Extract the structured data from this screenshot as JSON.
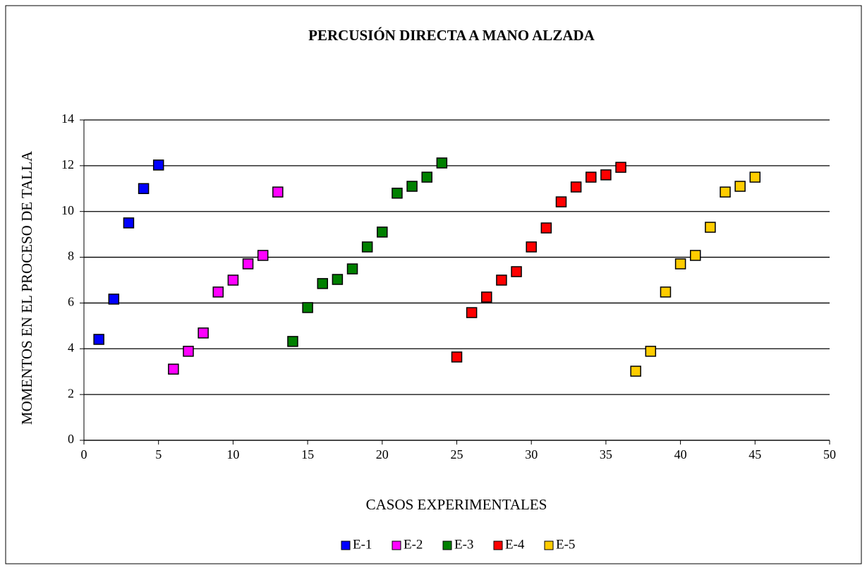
{
  "chart_data": {
    "type": "scatter",
    "title": "PERCUSIÓN DIRECTA A MANO ALZADA",
    "xlabel": "CASOS EXPERIMENTALES",
    "ylabel": "MOMENTOS EN EL PROCESO DE TALLA",
    "xlim": [
      0,
      50
    ],
    "xticks": [
      0,
      5,
      10,
      15,
      20,
      25,
      30,
      35,
      40,
      45,
      50
    ],
    "ylim": [
      0,
      14
    ],
    "yticks": [
      0,
      2,
      4,
      6,
      8,
      10,
      12,
      14
    ],
    "grid": true,
    "legend": "bottom",
    "series": [
      {
        "name": "E-1",
        "color": "#0000ff",
        "x": [
          1,
          2,
          3,
          4,
          5
        ],
        "values": [
          4.41,
          6.17,
          9.5,
          11.0,
          12.03
        ]
      },
      {
        "name": "E-2",
        "color": "#ff00ff",
        "x": [
          6,
          7,
          8,
          9,
          10,
          11,
          12,
          13
        ],
        "values": [
          3.11,
          3.89,
          4.69,
          6.48,
          7.0,
          7.71,
          8.08,
          10.85
        ]
      },
      {
        "name": "E-3",
        "color": "#008000",
        "x": [
          14,
          15,
          16,
          17,
          18,
          19,
          20,
          21,
          22,
          23,
          24
        ],
        "values": [
          4.32,
          5.8,
          6.85,
          7.03,
          7.49,
          8.45,
          9.1,
          10.8,
          11.1,
          11.5,
          12.12
        ]
      },
      {
        "name": "E-4",
        "color": "#ff0000",
        "x": [
          25,
          26,
          27,
          28,
          29,
          30,
          31,
          32,
          33,
          34,
          35,
          36
        ],
        "values": [
          3.64,
          5.58,
          6.26,
          7.0,
          7.37,
          8.45,
          9.28,
          10.42,
          11.07,
          11.5,
          11.6,
          11.93
        ]
      },
      {
        "name": "E-5",
        "color": "#ffcc00",
        "x": [
          37,
          38,
          39,
          40,
          41,
          42,
          43,
          44,
          45
        ],
        "values": [
          3.02,
          3.89,
          6.48,
          7.71,
          8.08,
          9.31,
          10.85,
          11.1,
          11.5
        ]
      }
    ]
  }
}
